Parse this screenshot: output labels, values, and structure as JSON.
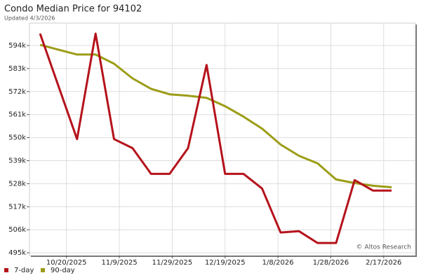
{
  "chart_data": {
    "type": "line",
    "title": "Condo Median Price for 94102",
    "subtitle": "Updated 4/3/2026",
    "watermark": "© Altos Research",
    "x": [
      "10/10/2025",
      "10/24/2025",
      "10/31/2025",
      "11/7/2025",
      "11/14/2025",
      "11/21/2025",
      "11/28/2025",
      "12/5/2025",
      "12/12/2025",
      "12/19/2025",
      "12/26/2025",
      "1/2/2026",
      "1/9/2026",
      "1/16/2026",
      "1/23/2026",
      "1/30/2026",
      "2/6/2026",
      "2/13/2026",
      "2/20/2026"
    ],
    "series": [
      {
        "name": "7-day",
        "color": "#b5121b",
        "values": [
          599700,
          549300,
          599700,
          549300,
          545000,
          532700,
          532700,
          545000,
          584700,
          532700,
          532700,
          525700,
          504700,
          505300,
          499700,
          499700,
          529700,
          524700,
          524700
        ]
      },
      {
        "name": "90-day",
        "color": "#9c9c16",
        "values": [
          594300,
          589700,
          589700,
          585300,
          578300,
          573300,
          570700,
          570000,
          569000,
          565000,
          560000,
          554300,
          546700,
          541300,
          537700,
          530000,
          528300,
          527000,
          526300
        ]
      }
    ],
    "xlim": [
      "10/6/2025",
      "3/1/2026"
    ],
    "xticks": [
      "10/20/2025",
      "11/9/2025",
      "11/29/2025",
      "12/19/2025",
      "1/8/2026",
      "1/28/2026",
      "2/17/2026"
    ],
    "ylim": [
      493700,
      604700
    ],
    "yticks": [
      {
        "value": 495000,
        "label": "495k"
      },
      {
        "value": 506000,
        "label": "506k"
      },
      {
        "value": 517000,
        "label": "517k"
      },
      {
        "value": 528000,
        "label": "528k"
      },
      {
        "value": 539000,
        "label": "539k"
      },
      {
        "value": 550000,
        "label": "550k"
      },
      {
        "value": 561000,
        "label": "561k"
      },
      {
        "value": 572000,
        "label": "572k"
      },
      {
        "value": 583000,
        "label": "583k"
      },
      {
        "value": 594000,
        "label": "594k"
      }
    ],
    "grid": true
  }
}
